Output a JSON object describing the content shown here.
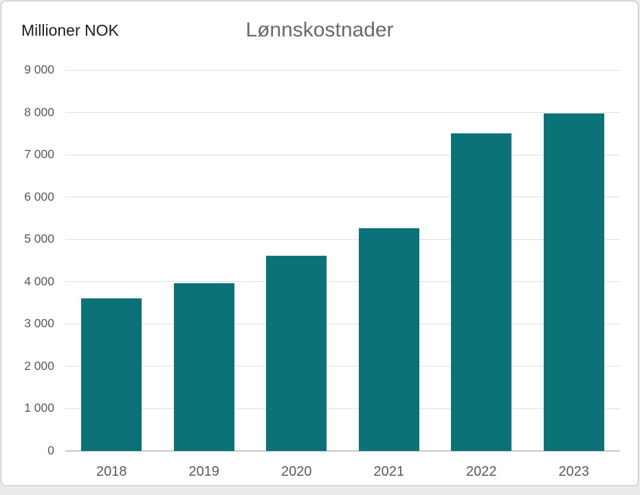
{
  "chart_data": {
    "type": "bar",
    "title": "Lønnskostnader",
    "ylabel": "Millioner NOK",
    "xlabel": "",
    "categories": [
      "2018",
      "2019",
      "2020",
      "2021",
      "2022",
      "2023"
    ],
    "values": [
      3600,
      3960,
      4610,
      5260,
      7500,
      7980
    ],
    "ylim": [
      0,
      9000
    ],
    "ytick_step": 1000,
    "ytick_labels": [
      "0",
      "1 000",
      "2 000",
      "3 000",
      "4 000",
      "5 000",
      "6 000",
      "7 000",
      "8 000",
      "9 000"
    ],
    "grid": true,
    "legend": "none",
    "bar_color": "#0b7377",
    "colors": {
      "title_text": "#696969",
      "ylabel_text": "#1d1d1d",
      "tick_text": "#595959",
      "gridline": "#dedede",
      "axis_line": "#c9c9c9",
      "card_background": "#ffffff",
      "card_border": "#bdbdbd",
      "page_background": "#ebebeb"
    }
  }
}
